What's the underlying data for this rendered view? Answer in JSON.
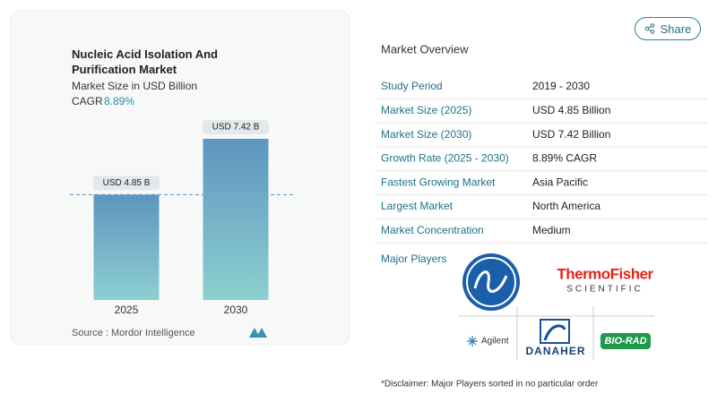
{
  "chart_data": {
    "type": "bar",
    "title": "Nucleic Acid Isolation And Purification Market",
    "subtitle": "Market Size in USD Billion",
    "cagr_label": "CAGR",
    "cagr_value": "8.89%",
    "categories": [
      "2025",
      "2030"
    ],
    "values": [
      4.85,
      7.42
    ],
    "value_labels": [
      "USD 4.85 B",
      "USD 7.42 B"
    ],
    "source": "Source :  Mordor Intelligence"
  },
  "share": "Share",
  "overview": {
    "title": "Market Overview",
    "rows": [
      [
        "Study Period",
        "2019 - 2030"
      ],
      [
        "Market Size (2025)",
        "USD 4.85 Billion"
      ],
      [
        "Market Size (2030)",
        "USD 7.42 Billion"
      ],
      [
        "Growth Rate (2025 - 2030)",
        "8.89% CAGR"
      ],
      [
        "Fastest Growing Market",
        "Asia Pacific"
      ],
      [
        "Largest Market",
        "North America"
      ],
      [
        "Market Concentration",
        "Medium"
      ]
    ],
    "players_label": "Major Players",
    "logos": {
      "thermo": "ThermoFisher",
      "thermo_sub": "SCIENTIFIC",
      "agilent": "Agilent",
      "danaher": "DANAHER",
      "biorad": "BIO-RAD"
    },
    "disclaimer": "*Disclaimer: Major Players sorted in no particular order"
  }
}
